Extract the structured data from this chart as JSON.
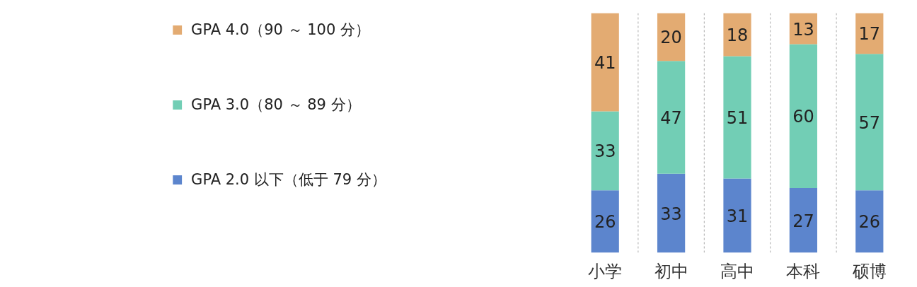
{
  "chart_data": {
    "type": "bar",
    "stacked": true,
    "categories": [
      "小学",
      "初中",
      "高中",
      "本科",
      "硕博"
    ],
    "series": [
      {
        "name": "GPA 2.0 以下（低于 79 分）",
        "color": "#4a78c8",
        "values": [
          26,
          33,
          31,
          27,
          26
        ]
      },
      {
        "name": "GPA 3.0（80 ～ 89 分）",
        "color": "#63c9ad",
        "values": [
          33,
          47,
          51,
          60,
          57
        ]
      },
      {
        "name": "GPA 4.0（90 ～ 100 分）",
        "color": "#e0a263",
        "values": [
          41,
          20,
          18,
          13,
          17
        ]
      }
    ],
    "data_labels": true,
    "legend": "left",
    "grid": "x"
  }
}
